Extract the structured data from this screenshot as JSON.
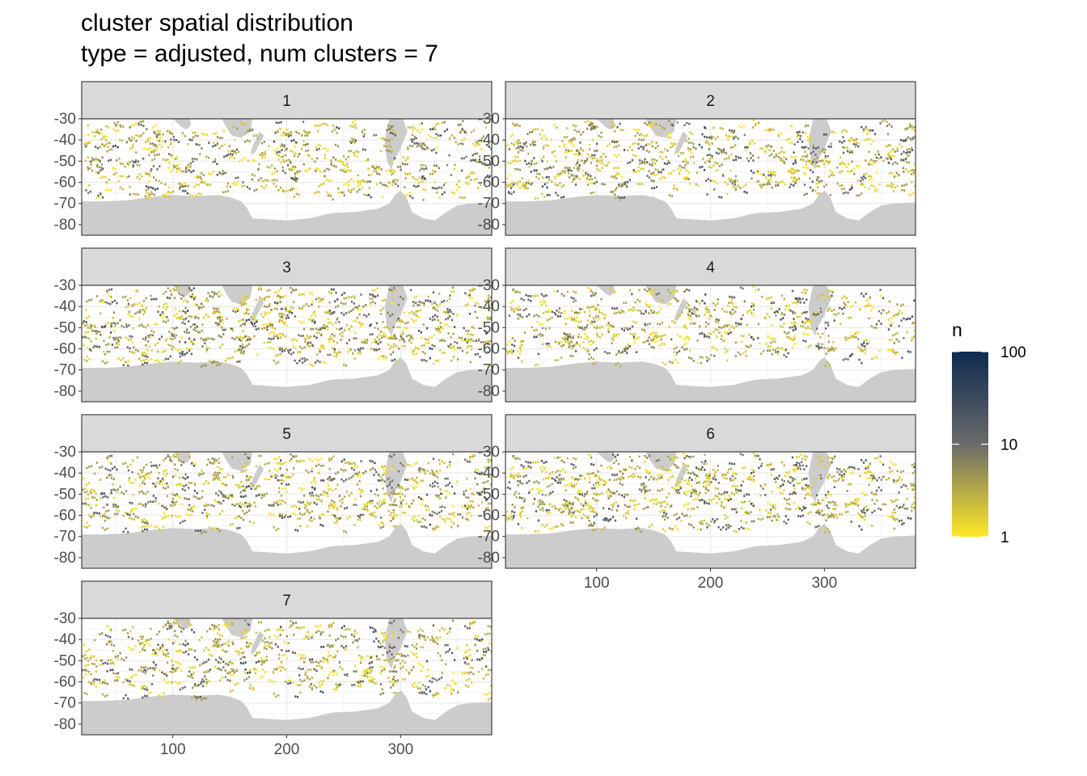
{
  "chart_data": {
    "type": "heatmap",
    "title_lines": [
      "cluster spatial distribution",
      "type = adjusted, num clusters = 7"
    ],
    "facets": [
      "1",
      "2",
      "3",
      "4",
      "5",
      "6",
      "7"
    ],
    "x_ticks": [
      100,
      200,
      300
    ],
    "y_ticks": [
      -30,
      -40,
      -50,
      -60,
      -70,
      -80
    ],
    "xlim": [
      20,
      380
    ],
    "ylim": [
      -85,
      -30
    ],
    "grid": true,
    "fill_scale": {
      "title": "n",
      "trans": "log10",
      "breaks": [
        1,
        10,
        100
      ],
      "break_labels": [
        "1",
        "10",
        "100"
      ],
      "colors": [
        "#fde725",
        "#6b6b6b",
        "#0e2a4f"
      ]
    },
    "legend_position": "right",
    "land_color": "#cccccc",
    "grid_color": "#ebebeb",
    "strip_color": "#d9d9d9"
  }
}
